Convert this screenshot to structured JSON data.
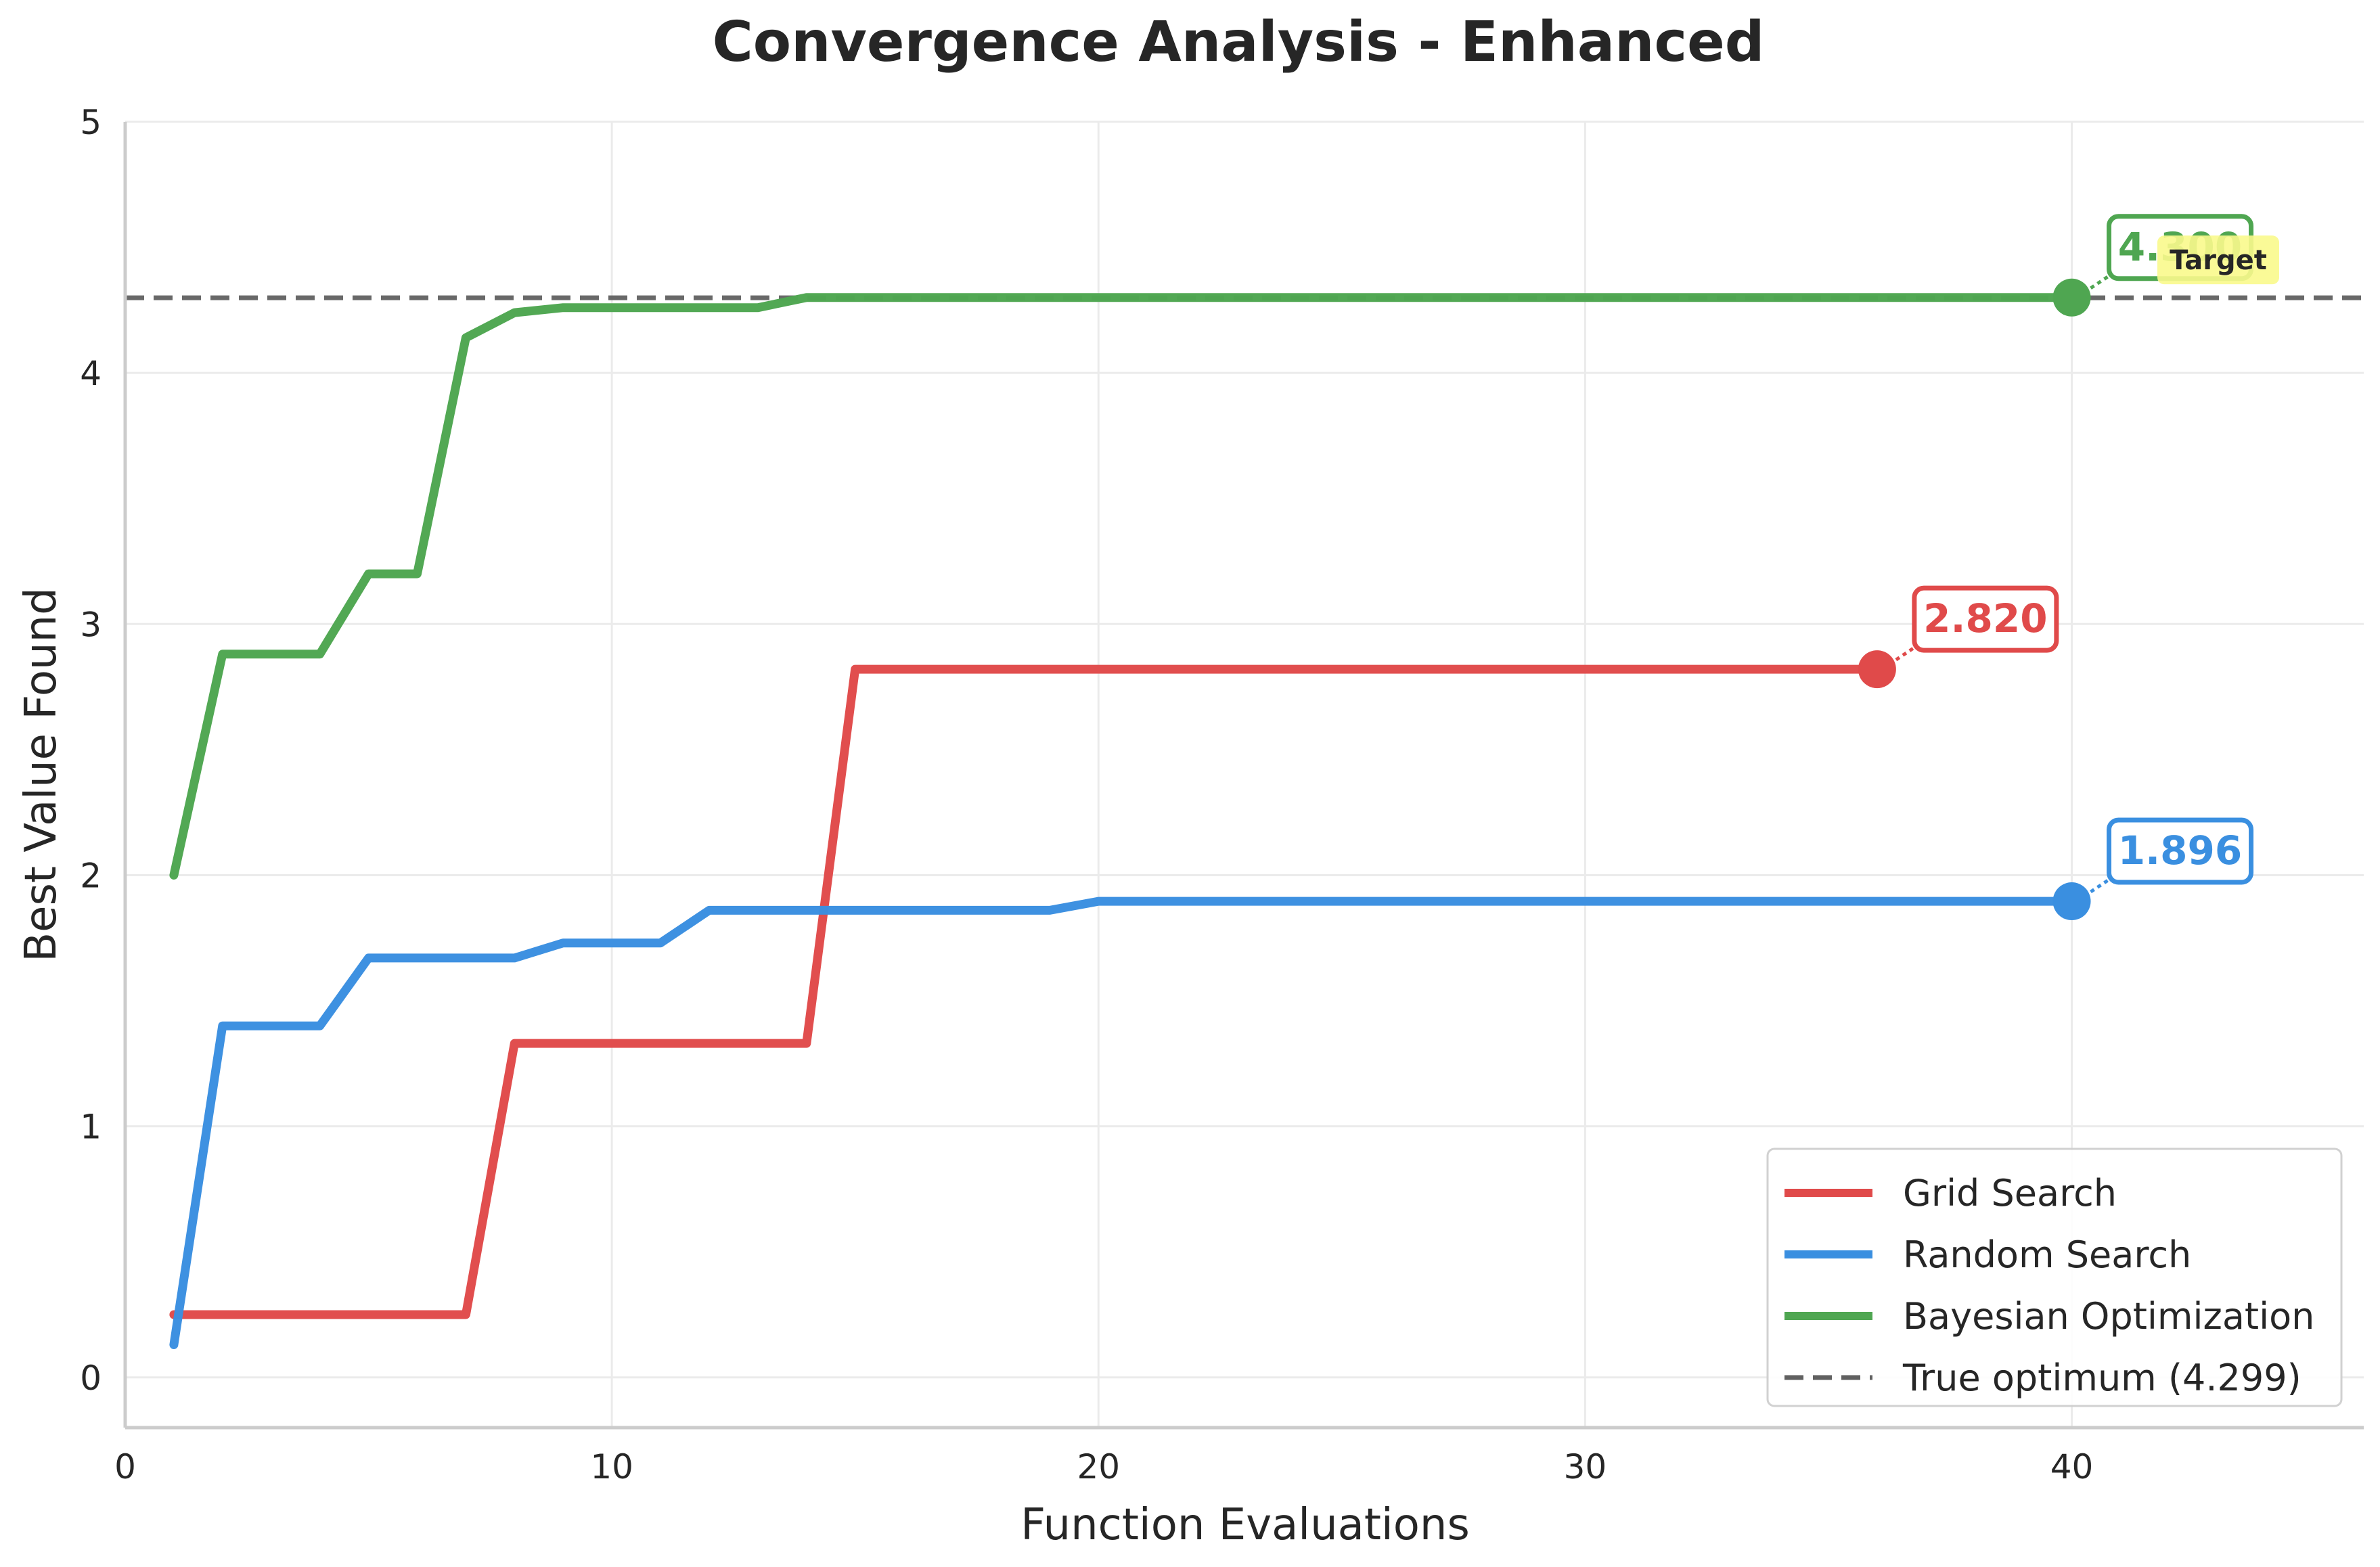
{
  "chart_data": {
    "type": "line",
    "title": "Convergence Analysis - Enhanced",
    "xlabel": "Function Evaluations",
    "ylabel": "Best Value Found",
    "xlim": [
      0,
      46
    ],
    "ylim": [
      -0.2,
      5
    ],
    "xticks": [
      0,
      10,
      20,
      30,
      40
    ],
    "yticks": [
      0,
      1,
      2,
      3,
      4,
      5
    ],
    "grid": true,
    "legend_position": "lower-right",
    "series": [
      {
        "name": "Grid Search",
        "color": "#e04a4a",
        "x": [
          1,
          2,
          3,
          4,
          5,
          6,
          7,
          8,
          9,
          10,
          11,
          12,
          13,
          14,
          15,
          16,
          17,
          18,
          19,
          20,
          21,
          22,
          23,
          24,
          25,
          26,
          27,
          28,
          29,
          30,
          31,
          32,
          33,
          34,
          35,
          36
        ],
        "y": [
          0.25,
          0.25,
          0.25,
          0.25,
          0.25,
          0.25,
          0.25,
          1.33,
          1.33,
          1.33,
          1.33,
          1.33,
          1.33,
          1.33,
          2.82,
          2.82,
          2.82,
          2.82,
          2.82,
          2.82,
          2.82,
          2.82,
          2.82,
          2.82,
          2.82,
          2.82,
          2.82,
          2.82,
          2.82,
          2.82,
          2.82,
          2.82,
          2.82,
          2.82,
          2.82,
          2.82
        ],
        "final_label": "2.820"
      },
      {
        "name": "Random Search",
        "color": "#3a8fe0",
        "x": [
          1,
          2,
          3,
          4,
          5,
          6,
          7,
          8,
          9,
          10,
          11,
          12,
          13,
          14,
          15,
          16,
          17,
          18,
          19,
          20,
          21,
          22,
          23,
          24,
          25,
          26,
          27,
          28,
          29,
          30,
          31,
          32,
          33,
          34,
          35,
          36,
          37,
          38,
          39,
          40
        ],
        "y": [
          0.13,
          1.4,
          1.4,
          1.4,
          1.67,
          1.67,
          1.67,
          1.67,
          1.73,
          1.73,
          1.73,
          1.86,
          1.86,
          1.86,
          1.86,
          1.86,
          1.86,
          1.86,
          1.86,
          1.896,
          1.896,
          1.896,
          1.896,
          1.896,
          1.896,
          1.896,
          1.896,
          1.896,
          1.896,
          1.896,
          1.896,
          1.896,
          1.896,
          1.896,
          1.896,
          1.896,
          1.896,
          1.896,
          1.896,
          1.896
        ],
        "final_label": "1.896"
      },
      {
        "name": "Bayesian Optimization",
        "color": "#4fa651",
        "x": [
          1,
          2,
          3,
          4,
          5,
          6,
          7,
          8,
          9,
          10,
          11,
          12,
          13,
          14,
          15,
          16,
          17,
          18,
          19,
          20,
          21,
          22,
          23,
          24,
          25,
          26,
          27,
          28,
          29,
          30,
          31,
          32,
          33,
          34,
          35,
          36,
          37,
          38,
          39,
          40
        ],
        "y": [
          2.0,
          2.88,
          2.88,
          2.88,
          3.2,
          3.2,
          4.14,
          4.24,
          4.26,
          4.26,
          4.26,
          4.26,
          4.26,
          4.3,
          4.3,
          4.3,
          4.3,
          4.3,
          4.3,
          4.3,
          4.3,
          4.3,
          4.3,
          4.3,
          4.3,
          4.3,
          4.3,
          4.3,
          4.3,
          4.3,
          4.3,
          4.3,
          4.3,
          4.3,
          4.3,
          4.3,
          4.3,
          4.3,
          4.3,
          4.3
        ],
        "final_label": "4.300"
      }
    ],
    "reference_line": {
      "name": "True optimum (4.299)",
      "value": 4.299,
      "color": "#606060",
      "style": "dashed",
      "annotation": "Target"
    }
  }
}
